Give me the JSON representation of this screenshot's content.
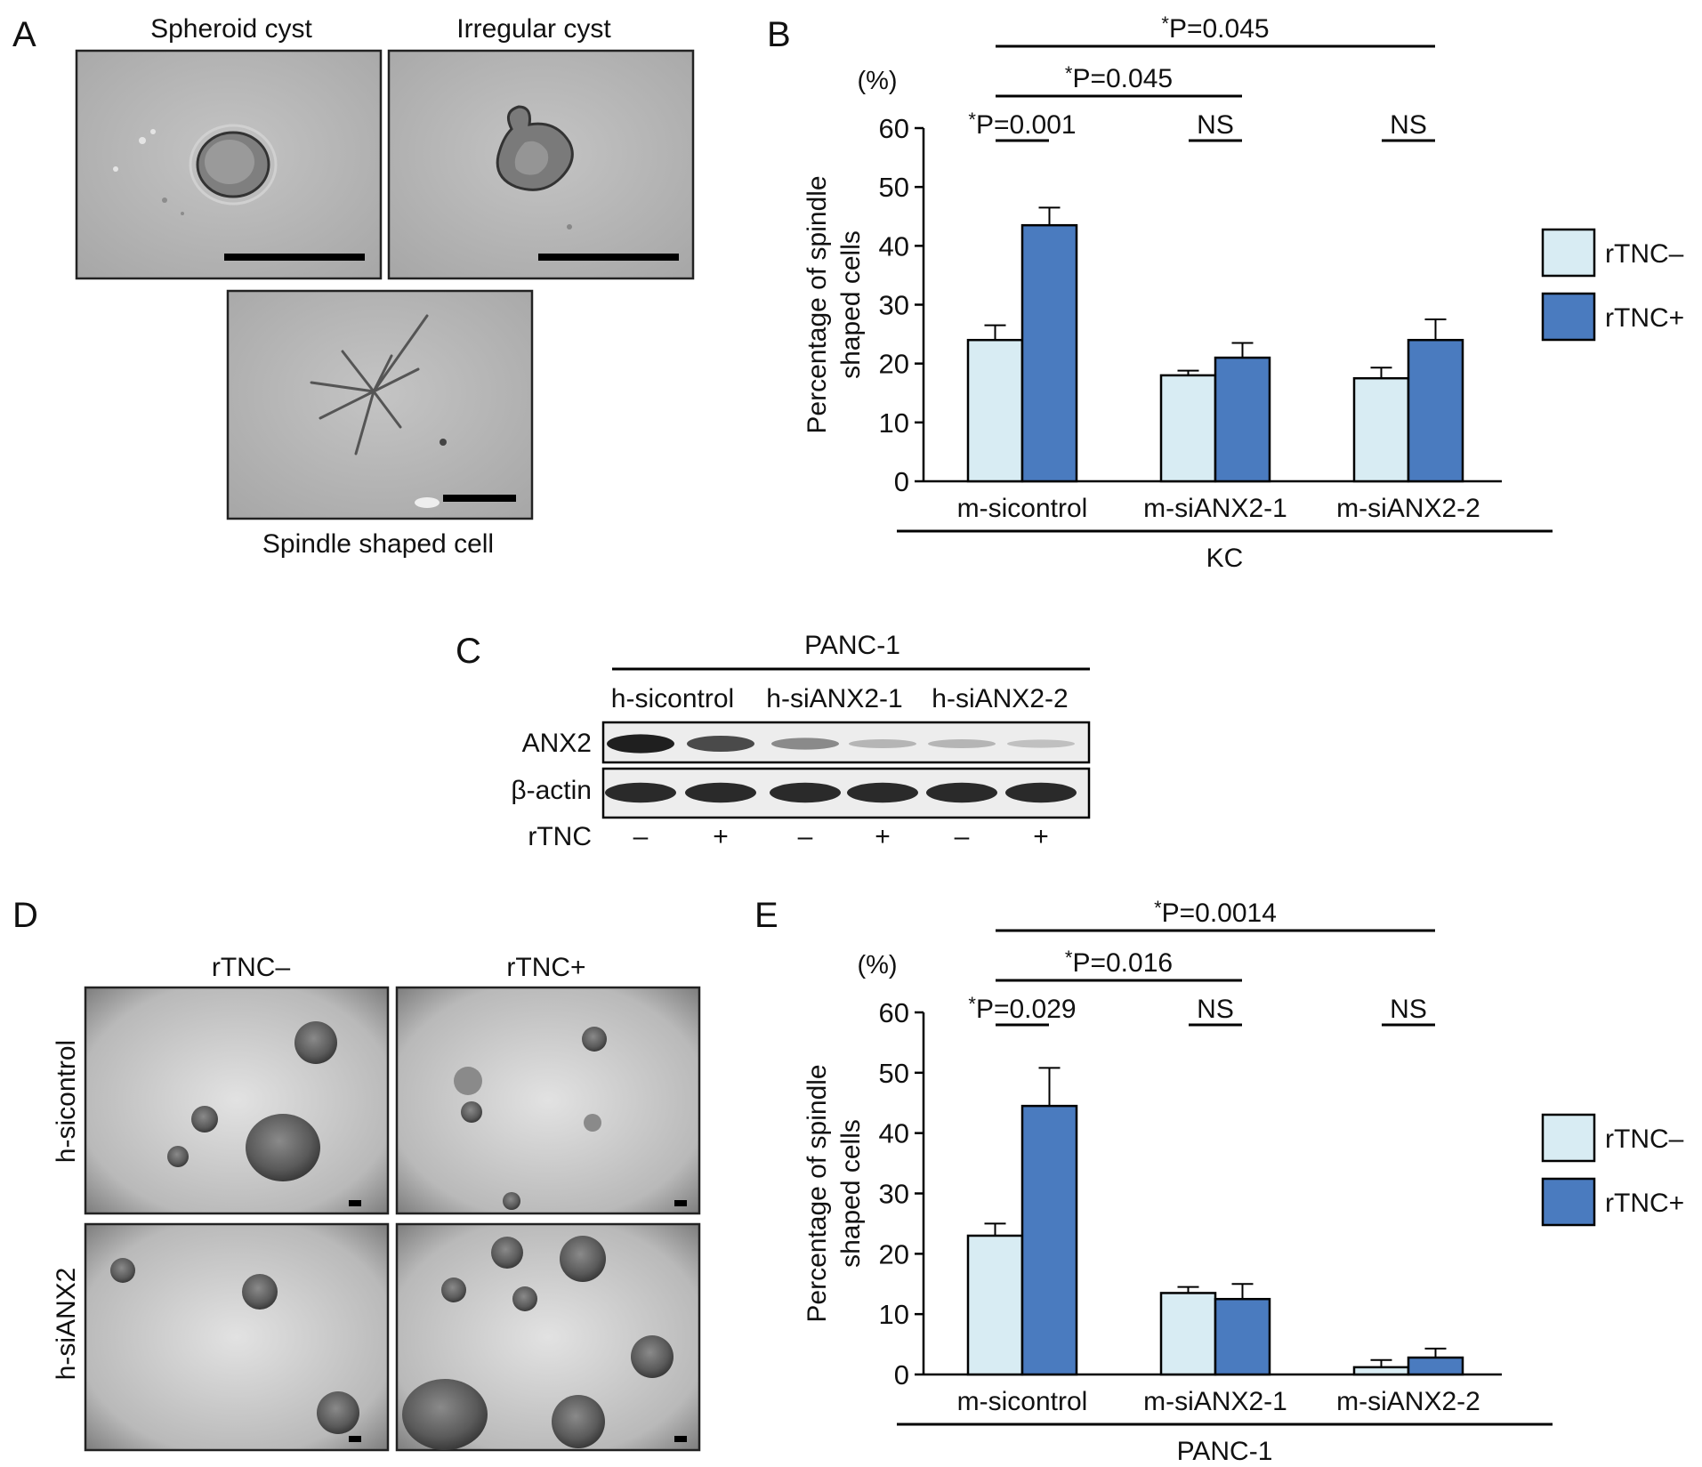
{
  "panels": {
    "A": {
      "letter": "A",
      "labels": {
        "spheroid": "Spheroid cyst",
        "irregular": "Irregular cyst",
        "spindle": "Spindle shaped cell"
      }
    },
    "B": {
      "letter": "B"
    },
    "C": {
      "letter": "C",
      "cell_line": "PANC-1",
      "groups": [
        "h-sicontrol",
        "h-siANX2-1",
        "h-siANX2-2"
      ],
      "rows": [
        "ANX2",
        "β-actin"
      ],
      "treatment_label": "rTNC",
      "treatment_signs": [
        "–",
        "+",
        "–",
        "+",
        "–",
        "+"
      ],
      "anx2_band_intensity": [
        0.95,
        0.75,
        0.45,
        0.25,
        0.25,
        0.2
      ],
      "actin_band_intensity": [
        0.9,
        0.9,
        0.9,
        0.9,
        0.9,
        0.9
      ]
    },
    "D": {
      "letter": "D",
      "columns": [
        "rTNC–",
        "rTNC+"
      ],
      "rows": [
        "h-sicontrol",
        "h-siANX2"
      ]
    },
    "E": {
      "letter": "E"
    }
  },
  "chart_data": [
    {
      "panel": "B",
      "type": "bar",
      "ylabel": "Percentage of spindle shaped cells",
      "yunit": "(%)",
      "ylim": [
        0,
        60
      ],
      "yticks": [
        0,
        10,
        20,
        30,
        40,
        50,
        60
      ],
      "categories": [
        "m-sicontrol",
        "m-siANX2-1",
        "m-siANX2-2"
      ],
      "group_label": "KC",
      "series": [
        {
          "name": "rTNC–",
          "color": "#d8ecf3",
          "values": [
            24,
            18,
            17.5
          ],
          "errors": [
            2.5,
            0.8,
            1.8
          ]
        },
        {
          "name": "rTNC+",
          "color": "#4a7bbf",
          "values": [
            43.5,
            21,
            24
          ],
          "errors": [
            3,
            2.5,
            3.5
          ]
        }
      ],
      "annotations": [
        {
          "type": "within",
          "category": 0,
          "text": "*P=0.001"
        },
        {
          "type": "within",
          "category": 1,
          "text": "NS"
        },
        {
          "type": "within",
          "category": 2,
          "text": "NS"
        },
        {
          "type": "between",
          "from": 0,
          "to": 1,
          "text": "*P=0.045"
        },
        {
          "type": "between",
          "from": 0,
          "to": 2,
          "text": "*P=0.045"
        }
      ]
    },
    {
      "panel": "E",
      "type": "bar",
      "ylabel": "Percentage of spindle shaped cells",
      "yunit": "(%)",
      "ylim": [
        0,
        60
      ],
      "yticks": [
        0,
        10,
        20,
        30,
        40,
        50,
        60
      ],
      "categories": [
        "m-sicontrol",
        "m-siANX2-1",
        "m-siANX2-2"
      ],
      "group_label": "PANC-1",
      "series": [
        {
          "name": "rTNC–",
          "color": "#d8ecf3",
          "values": [
            23,
            13.5,
            1.2
          ],
          "errors": [
            2,
            1,
            1.2
          ]
        },
        {
          "name": "rTNC+",
          "color": "#4a7bbf",
          "values": [
            44.5,
            12.5,
            2.8
          ],
          "errors": [
            6.3,
            2.5,
            1.5
          ]
        }
      ],
      "annotations": [
        {
          "type": "within",
          "category": 0,
          "text": "*P=0.029"
        },
        {
          "type": "within",
          "category": 1,
          "text": "NS"
        },
        {
          "type": "within",
          "category": 2,
          "text": "NS"
        },
        {
          "type": "between",
          "from": 0,
          "to": 1,
          "text": "*P=0.016"
        },
        {
          "type": "between",
          "from": 0,
          "to": 2,
          "text": "*P=0.0014"
        }
      ]
    }
  ]
}
